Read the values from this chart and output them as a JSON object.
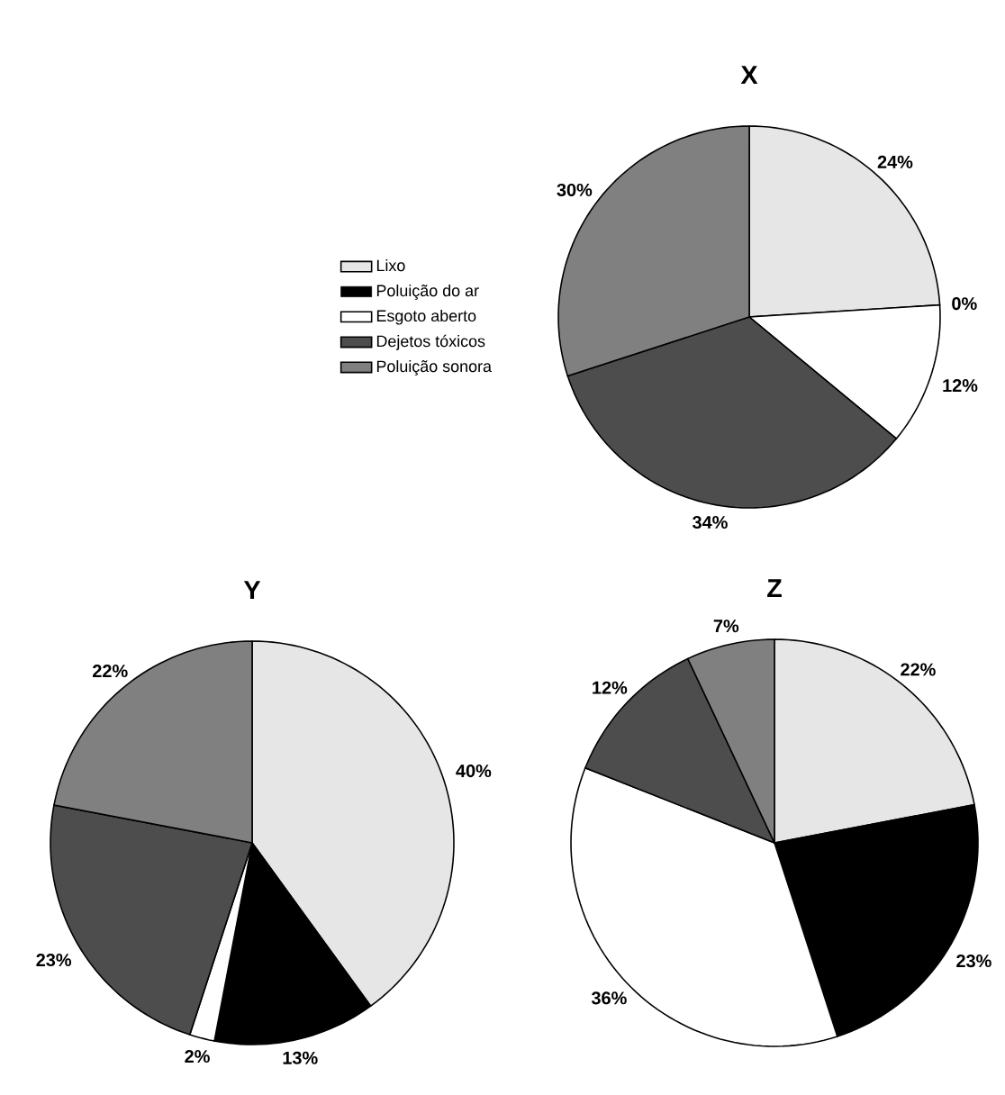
{
  "chart_data": [
    {
      "type": "pie",
      "title": "X",
      "categories": [
        "Lixo",
        "Poluição do ar",
        "Esgoto aberto",
        "Dejetos tóxicos",
        "Poluição sonora"
      ],
      "values": [
        24,
        0,
        12,
        34,
        30
      ],
      "value_labels": [
        "24%",
        "0%",
        "12%",
        "34%",
        "30%"
      ],
      "colors": [
        "#e6e6e6",
        "#000000",
        "#ffffff",
        "#4d4d4d",
        "#808080"
      ],
      "legend": "left"
    },
    {
      "type": "pie",
      "title": "Y",
      "categories": [
        null,
        null,
        null,
        null,
        null
      ],
      "values": [
        40,
        13,
        2,
        23,
        22
      ],
      "value_labels": [
        "40%",
        "13%",
        "2%",
        "23%",
        "22%"
      ],
      "colors": [
        "#e6e6e6",
        "#000000",
        "#ffffff",
        "#4d4d4d",
        "#808080"
      ]
    },
    {
      "type": "pie",
      "title": "Z",
      "categories": [
        null,
        null,
        null,
        null,
        null
      ],
      "values": [
        22,
        23,
        36,
        12,
        7
      ],
      "value_labels": [
        "22%",
        "23%",
        "36%",
        "12%",
        "7%"
      ],
      "colors": [
        "#e6e6e6",
        "#000000",
        "#ffffff",
        "#4d4d4d",
        "#808080"
      ]
    }
  ]
}
